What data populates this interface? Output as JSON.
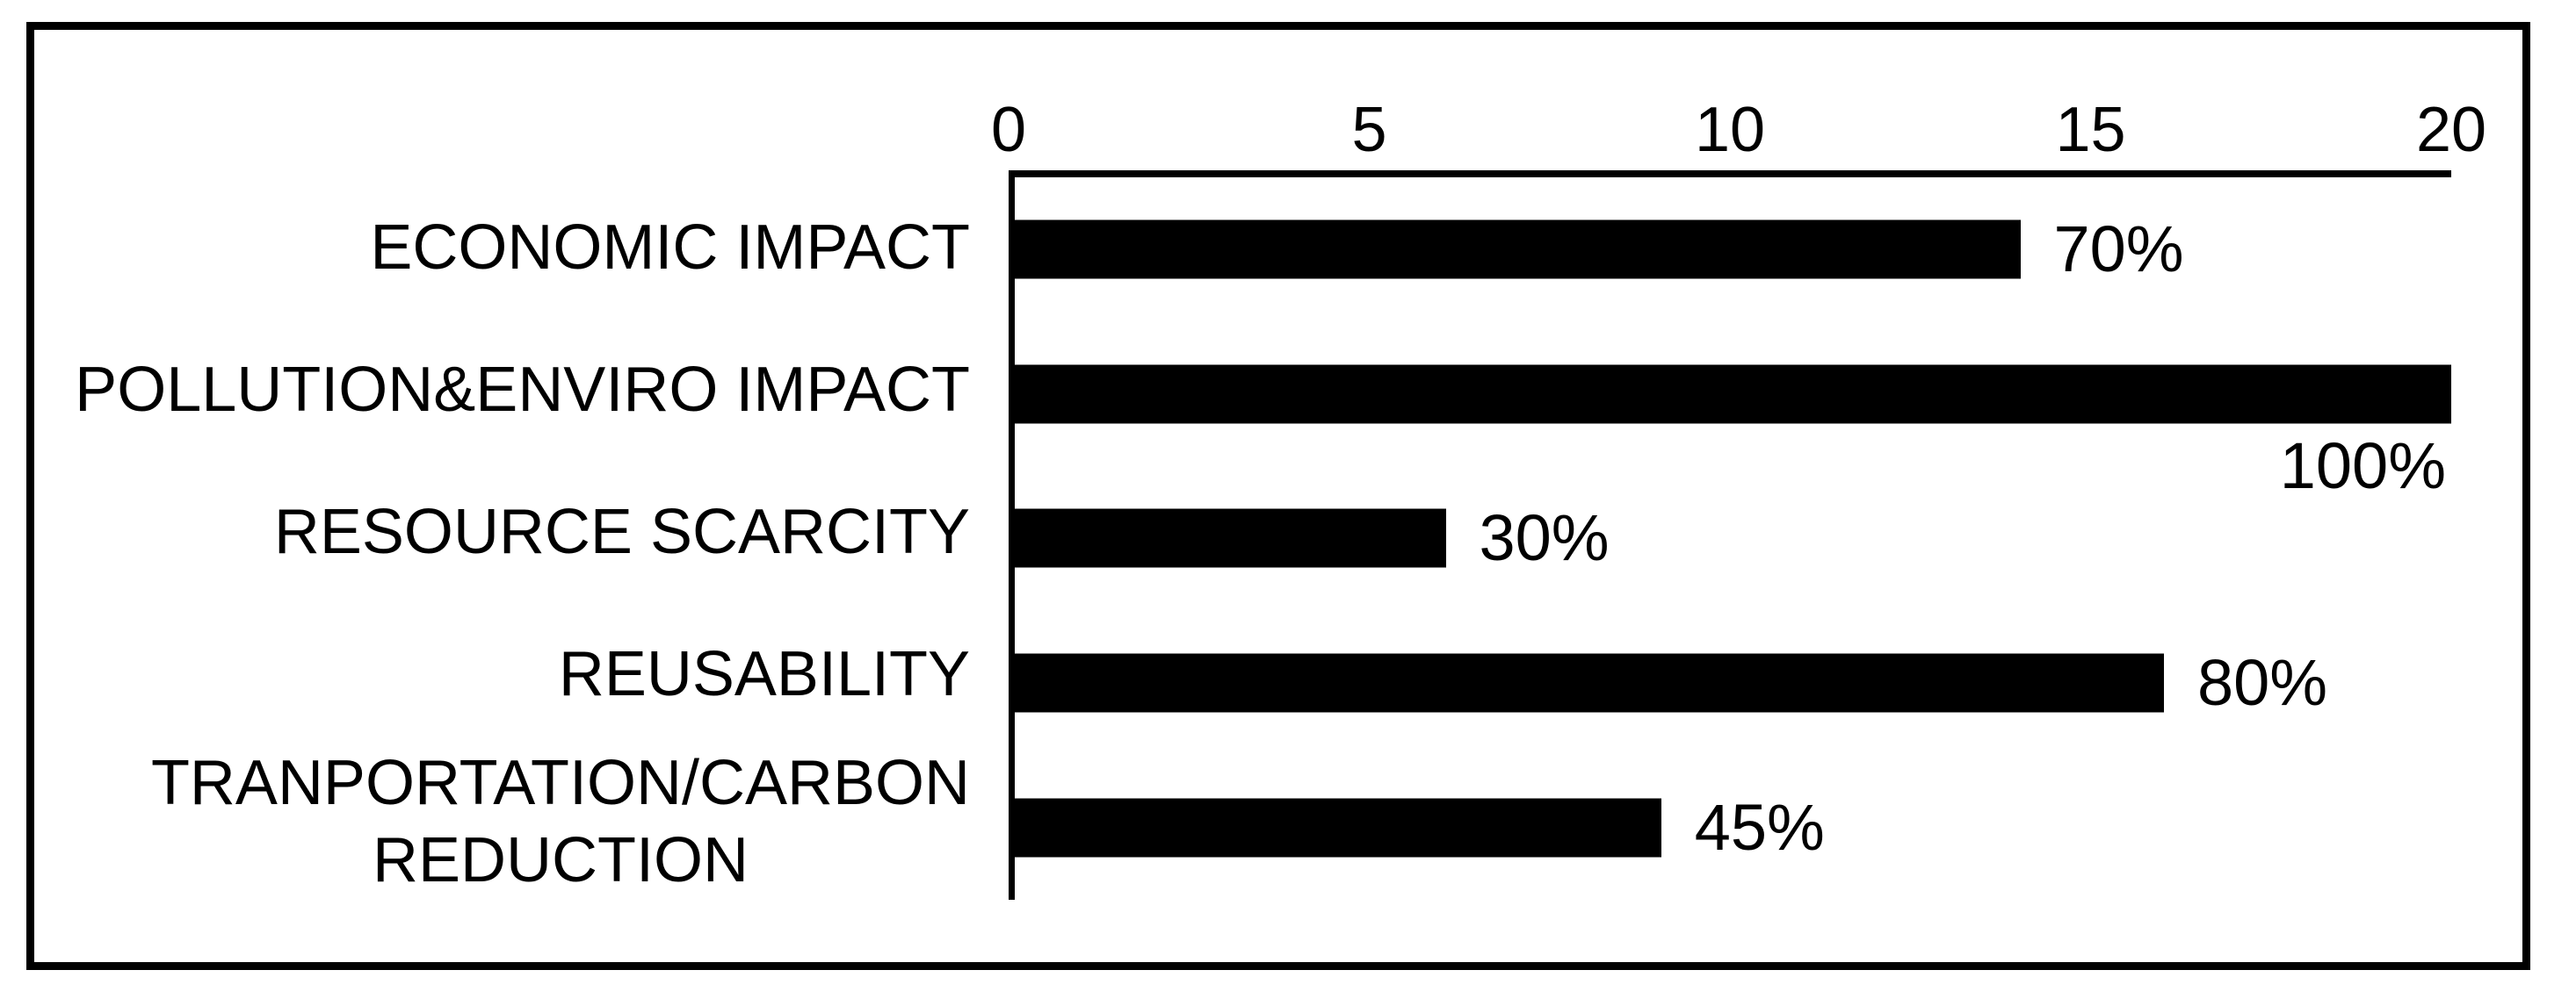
{
  "chart_data": {
    "type": "bar",
    "orientation": "horizontal",
    "title": "",
    "xlabel": "",
    "ylabel": "",
    "categories": [
      "ECONOMIC IMPACT",
      "POLLUTION&ENVIRO IMPACT",
      "RESOURCE SCARCITY",
      "REUSABILITY",
      "TRANPORTATION/CARBON\nREDUCTION"
    ],
    "values": [
      14,
      20,
      6,
      16,
      9
    ],
    "value_labels": [
      "70%",
      "100%",
      "30%",
      "80%",
      "45%"
    ],
    "percentages": [
      70,
      100,
      30,
      80,
      45
    ],
    "x_ticks": [
      0,
      5,
      10,
      15,
      20
    ],
    "xlim": [
      0,
      20
    ],
    "axis_position": "top",
    "grid": "off",
    "legend": "none",
    "bar_color": "#000000",
    "background_color": "#ffffff",
    "label_below_bar_index": 1
  }
}
